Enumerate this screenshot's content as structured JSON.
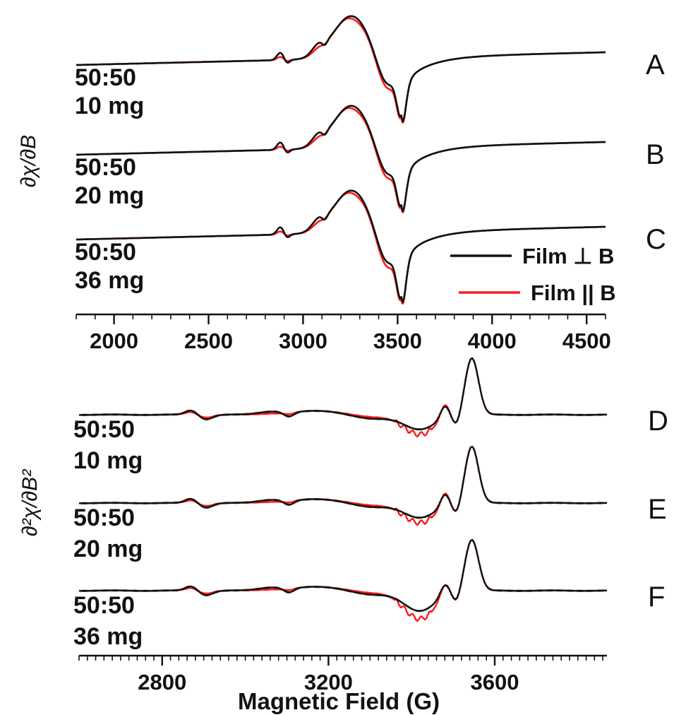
{
  "chart_data": [
    {
      "type": "line",
      "panel": "top",
      "ylabel": "∂χ/∂B",
      "xlabel": "",
      "xlim": [
        1800,
        4600
      ],
      "x_ticks": [
        2000,
        2500,
        3000,
        3500,
        4000,
        4500
      ],
      "x_tick_labels": [
        "2000",
        "2500",
        "3000",
        "3500",
        "4000",
        "4500"
      ],
      "legend": {
        "placement": "bottom-right",
        "entries": [
          {
            "label": "Film ⊥ B",
            "color": "#111111"
          },
          {
            "label": "Film || B",
            "color": "#ff1a1a"
          }
        ]
      },
      "traces": [
        {
          "letter": "A",
          "ratio": "50:50",
          "mass": "10 mg",
          "peak_x": 3260,
          "peak_y": 0.42,
          "trough_x": 3520,
          "trough_y": -0.68
        },
        {
          "letter": "B",
          "ratio": "50:50",
          "mass": "20 mg",
          "peak_x": 3260,
          "peak_y": 0.42,
          "trough_x": 3520,
          "trough_y": -0.68
        },
        {
          "letter": "C",
          "ratio": "50:50",
          "mass": "36 mg",
          "peak_x": 3260,
          "peak_y": 0.42,
          "trough_x": 3505,
          "trough_y": -0.75
        }
      ],
      "series": [
        {
          "name": "Film ⊥ B",
          "color": "#111111"
        },
        {
          "name": "Film || B",
          "color": "#ff1a1a"
        }
      ]
    },
    {
      "type": "line",
      "panel": "bottom",
      "ylabel": "∂²χ/∂B²",
      "xlabel": "Magnetic Field (G)",
      "xlim": [
        2600,
        3870
      ],
      "x_ticks": [
        2800,
        3200,
        3600
      ],
      "x_tick_labels": [
        "2800",
        "3200",
        "3600"
      ],
      "traces": [
        {
          "letter": "D",
          "ratio": "50:50",
          "mass": "10 mg",
          "main_peak_x": 3545,
          "main_peak_y": 1.0,
          "trough_x": 3420,
          "trough_y": -0.33
        },
        {
          "letter": "E",
          "ratio": "50:50",
          "mass": "20 mg",
          "main_peak_x": 3545,
          "main_peak_y": 1.0,
          "trough_x": 3420,
          "trough_y": -0.33
        },
        {
          "letter": "F",
          "ratio": "50:50",
          "mass": "36 mg",
          "main_peak_x": 3545,
          "main_peak_y": 0.9,
          "trough_x": 3420,
          "trough_y": -0.5
        }
      ],
      "series": [
        {
          "name": "Film ⊥ B",
          "color": "#111111"
        },
        {
          "name": "Film || B",
          "color": "#ff1a1a"
        }
      ]
    }
  ]
}
